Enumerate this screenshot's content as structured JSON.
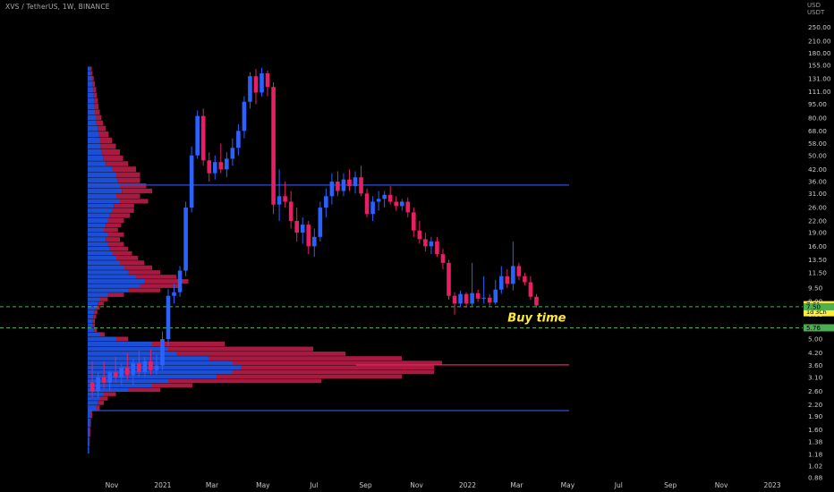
{
  "chart_data": {
    "type": "candlestick",
    "title": "XVS / TetherUS, 1W, BINANCE",
    "currency_unit": [
      "USD",
      "USDT"
    ],
    "colors": {
      "up": "#2962ff",
      "down": "#e91e63",
      "up_profile": "#1e56e8",
      "down_profile": "#b71c47",
      "level_line": "#2f4fd4",
      "dashed_line": "#4caf50",
      "annotation": "#ffeb3b",
      "axis_text": "#c8c8c8"
    },
    "scale": "log",
    "ylim": [
      0.86,
      300
    ],
    "y_ticks": [
      "250.00",
      "210.00",
      "180.00",
      "155.00",
      "131.00",
      "111.00",
      "95.00",
      "80.00",
      "68.00",
      "58.00",
      "50.00",
      "42.00",
      "36.00",
      "31.00",
      "26.00",
      "22.00",
      "19.00",
      "16.00",
      "13.50",
      "11.50",
      "9.50",
      "8.00",
      "6.80",
      "5.80",
      "5.00",
      "4.20",
      "3.60",
      "3.10",
      "2.60",
      "2.20",
      "1.90",
      "1.60",
      "1.38",
      "1.18",
      "1.02",
      "0.88"
    ],
    "x_ticks": [
      {
        "label": "Nov",
        "date": "2020-11-01"
      },
      {
        "label": "2021",
        "date": "2021-01-01"
      },
      {
        "label": "Mar",
        "date": "2021-03-01"
      },
      {
        "label": "May",
        "date": "2021-05-01"
      },
      {
        "label": "Jul",
        "date": "2021-07-01"
      },
      {
        "label": "Sep",
        "date": "2021-09-01"
      },
      {
        "label": "Nov",
        "date": "2021-11-01"
      },
      {
        "label": "2022",
        "date": "2022-01-01"
      },
      {
        "label": "Mar",
        "date": "2022-03-01"
      },
      {
        "label": "May",
        "date": "2022-05-01"
      },
      {
        "label": "Jul",
        "date": "2022-07-01"
      },
      {
        "label": "Sep",
        "date": "2022-09-01"
      },
      {
        "label": "Nov",
        "date": "2022-11-01"
      },
      {
        "label": "2023",
        "date": "2023-01-01"
      }
    ],
    "price_labels": [
      {
        "value": 7.61,
        "text": "7.61",
        "sub": "1d 3Ch",
        "color": "#ffeb3b"
      },
      {
        "value": 7.5,
        "text": "7.50",
        "color": "#4caf50"
      },
      {
        "value": 5.76,
        "text": "5.76",
        "color": "#4caf50"
      }
    ],
    "horizontal_levels": [
      {
        "value": 34.5,
        "kind": "solid"
      },
      {
        "value": 3.62,
        "kind": "solid-red"
      },
      {
        "value": 2.04,
        "kind": "solid"
      },
      {
        "value": 7.5,
        "kind": "dashed"
      },
      {
        "value": 5.76,
        "kind": "dashed"
      }
    ],
    "annotation": {
      "text": "Buy time",
      "date": "2022-03-25",
      "value": 6.5
    },
    "candles": [
      {
        "d": "2020-10-05",
        "o": 2.9,
        "h": 3.8,
        "l": 2.4,
        "c": 2.6
      },
      {
        "d": "2020-10-12",
        "o": 2.6,
        "h": 3.3,
        "l": 2.4,
        "c": 3.1
      },
      {
        "d": "2020-10-19",
        "o": 3.1,
        "h": 3.8,
        "l": 2.7,
        "c": 2.9
      },
      {
        "d": "2020-10-26",
        "o": 2.9,
        "h": 3.4,
        "l": 2.6,
        "c": 3.3
      },
      {
        "d": "2020-11-02",
        "o": 3.3,
        "h": 4.0,
        "l": 2.9,
        "c": 3.1
      },
      {
        "d": "2020-11-09",
        "o": 3.1,
        "h": 3.7,
        "l": 2.8,
        "c": 3.5
      },
      {
        "d": "2020-11-16",
        "o": 3.5,
        "h": 4.2,
        "l": 3.0,
        "c": 3.2
      },
      {
        "d": "2020-11-23",
        "o": 3.2,
        "h": 3.9,
        "l": 2.8,
        "c": 3.7
      },
      {
        "d": "2020-11-30",
        "o": 3.7,
        "h": 4.3,
        "l": 3.1,
        "c": 3.3
      },
      {
        "d": "2020-12-07",
        "o": 3.3,
        "h": 4.0,
        "l": 3.1,
        "c": 3.8
      },
      {
        "d": "2020-12-14",
        "o": 3.8,
        "h": 4.4,
        "l": 3.2,
        "c": 3.4
      },
      {
        "d": "2020-12-21",
        "o": 3.4,
        "h": 4.1,
        "l": 3.2,
        "c": 3.6
      },
      {
        "d": "2020-12-28",
        "o": 3.6,
        "h": 5.5,
        "l": 3.4,
        "c": 5.0
      },
      {
        "d": "2021-01-04",
        "o": 5.0,
        "h": 9.4,
        "l": 4.6,
        "c": 8.6
      },
      {
        "d": "2021-01-11",
        "o": 8.6,
        "h": 10.0,
        "l": 7.8,
        "c": 9.0
      },
      {
        "d": "2021-01-18",
        "o": 9.0,
        "h": 12.5,
        "l": 8.5,
        "c": 11.8
      },
      {
        "d": "2021-01-25",
        "o": 11.8,
        "h": 28.0,
        "l": 11.0,
        "c": 26.0
      },
      {
        "d": "2021-02-01",
        "o": 26.0,
        "h": 56.0,
        "l": 24.5,
        "c": 50.0
      },
      {
        "d": "2021-02-08",
        "o": 50.0,
        "h": 88.0,
        "l": 48.0,
        "c": 82.0
      },
      {
        "d": "2021-02-15",
        "o": 82.0,
        "h": 90.0,
        "l": 44.0,
        "c": 47.0
      },
      {
        "d": "2021-02-22",
        "o": 47.0,
        "h": 52.0,
        "l": 36.0,
        "c": 40.0
      },
      {
        "d": "2021-03-01",
        "o": 40.0,
        "h": 50.0,
        "l": 37.0,
        "c": 46.0
      },
      {
        "d": "2021-03-08",
        "o": 46.0,
        "h": 58.0,
        "l": 40.0,
        "c": 42.0
      },
      {
        "d": "2021-03-15",
        "o": 42.0,
        "h": 52.0,
        "l": 38.0,
        "c": 48.0
      },
      {
        "d": "2021-03-22",
        "o": 48.0,
        "h": 62.0,
        "l": 44.0,
        "c": 55.0
      },
      {
        "d": "2021-03-29",
        "o": 55.0,
        "h": 74.0,
        "l": 50.0,
        "c": 68.0
      },
      {
        "d": "2021-04-05",
        "o": 68.0,
        "h": 105.0,
        "l": 62.0,
        "c": 98.0
      },
      {
        "d": "2021-04-12",
        "o": 98.0,
        "h": 142.0,
        "l": 90.0,
        "c": 135.0
      },
      {
        "d": "2021-04-19",
        "o": 135.0,
        "h": 148.0,
        "l": 95.0,
        "c": 110.0
      },
      {
        "d": "2021-04-26",
        "o": 110.0,
        "h": 150.0,
        "l": 105.0,
        "c": 140.0
      },
      {
        "d": "2021-05-03",
        "o": 140.0,
        "h": 145.0,
        "l": 105.0,
        "c": 118.0
      },
      {
        "d": "2021-05-10",
        "o": 118.0,
        "h": 125.0,
        "l": 24.0,
        "c": 27.0
      },
      {
        "d": "2021-05-17",
        "o": 27.0,
        "h": 42.0,
        "l": 22.0,
        "c": 30.0
      },
      {
        "d": "2021-05-24",
        "o": 30.0,
        "h": 36.0,
        "l": 26.0,
        "c": 28.0
      },
      {
        "d": "2021-05-31",
        "o": 28.0,
        "h": 32.0,
        "l": 20.0,
        "c": 22.0
      },
      {
        "d": "2021-06-07",
        "o": 22.0,
        "h": 26.0,
        "l": 17.0,
        "c": 19.0
      },
      {
        "d": "2021-06-14",
        "o": 19.0,
        "h": 23.0,
        "l": 16.5,
        "c": 21.0
      },
      {
        "d": "2021-06-21",
        "o": 21.0,
        "h": 22.0,
        "l": 14.5,
        "c": 16.0
      },
      {
        "d": "2021-06-28",
        "o": 16.0,
        "h": 20.0,
        "l": 14.0,
        "c": 18.0
      },
      {
        "d": "2021-07-05",
        "o": 18.0,
        "h": 28.0,
        "l": 17.0,
        "c": 26.0
      },
      {
        "d": "2021-07-12",
        "o": 26.0,
        "h": 33.0,
        "l": 23.0,
        "c": 30.0
      },
      {
        "d": "2021-07-19",
        "o": 30.0,
        "h": 40.0,
        "l": 27.0,
        "c": 36.0
      },
      {
        "d": "2021-07-26",
        "o": 36.0,
        "h": 41.0,
        "l": 30.0,
        "c": 32.0
      },
      {
        "d": "2021-08-02",
        "o": 32.0,
        "h": 40.0,
        "l": 30.0,
        "c": 37.0
      },
      {
        "d": "2021-08-09",
        "o": 37.0,
        "h": 42.0,
        "l": 32.0,
        "c": 34.0
      },
      {
        "d": "2021-08-16",
        "o": 34.0,
        "h": 41.0,
        "l": 31.0,
        "c": 38.0
      },
      {
        "d": "2021-08-23",
        "o": 38.0,
        "h": 44.0,
        "l": 30.0,
        "c": 31.0
      },
      {
        "d": "2021-08-30",
        "o": 31.0,
        "h": 33.0,
        "l": 23.0,
        "c": 24.0
      },
      {
        "d": "2021-09-06",
        "o": 24.0,
        "h": 30.0,
        "l": 22.0,
        "c": 28.0
      },
      {
        "d": "2021-09-13",
        "o": 28.0,
        "h": 32.0,
        "l": 25.0,
        "c": 29.0
      },
      {
        "d": "2021-09-20",
        "o": 29.0,
        "h": 32.0,
        "l": 26.0,
        "c": 30.5
      },
      {
        "d": "2021-09-27",
        "o": 30.5,
        "h": 34.0,
        "l": 27.0,
        "c": 28.0
      },
      {
        "d": "2021-10-04",
        "o": 28.0,
        "h": 30.0,
        "l": 25.0,
        "c": 26.5
      },
      {
        "d": "2021-10-11",
        "o": 26.5,
        "h": 29.0,
        "l": 25.0,
        "c": 28.0
      },
      {
        "d": "2021-10-18",
        "o": 28.0,
        "h": 29.5,
        "l": 23.0,
        "c": 24.5
      },
      {
        "d": "2021-10-25",
        "o": 24.5,
        "h": 26.0,
        "l": 18.0,
        "c": 19.5
      },
      {
        "d": "2021-11-01",
        "o": 19.5,
        "h": 22.0,
        "l": 16.5,
        "c": 17.5
      },
      {
        "d": "2021-11-08",
        "o": 17.5,
        "h": 19.0,
        "l": 15.0,
        "c": 16.0
      },
      {
        "d": "2021-11-15",
        "o": 16.0,
        "h": 18.0,
        "l": 14.5,
        "c": 17.0
      },
      {
        "d": "2021-11-22",
        "o": 17.0,
        "h": 18.0,
        "l": 14.0,
        "c": 14.5
      },
      {
        "d": "2021-11-29",
        "o": 14.5,
        "h": 15.5,
        "l": 12.0,
        "c": 13.0
      },
      {
        "d": "2021-12-06",
        "o": 13.0,
        "h": 13.5,
        "l": 8.2,
        "c": 8.6
      },
      {
        "d": "2021-12-13",
        "o": 8.6,
        "h": 9.0,
        "l": 6.8,
        "c": 7.8
      },
      {
        "d": "2021-12-20",
        "o": 7.8,
        "h": 9.2,
        "l": 7.5,
        "c": 8.8
      },
      {
        "d": "2021-12-27",
        "o": 8.8,
        "h": 9.0,
        "l": 7.4,
        "c": 7.8
      },
      {
        "d": "2022-01-03",
        "o": 7.8,
        "h": 13.0,
        "l": 7.5,
        "c": 8.9
      },
      {
        "d": "2022-01-10",
        "o": 8.9,
        "h": 9.3,
        "l": 8.0,
        "c": 8.3
      },
      {
        "d": "2022-01-17",
        "o": 8.3,
        "h": 11.0,
        "l": 7.8,
        "c": 8.4
      },
      {
        "d": "2022-01-24",
        "o": 8.4,
        "h": 8.8,
        "l": 7.6,
        "c": 7.9
      },
      {
        "d": "2022-01-31",
        "o": 7.9,
        "h": 10.5,
        "l": 7.7,
        "c": 9.3
      },
      {
        "d": "2022-02-07",
        "o": 9.3,
        "h": 12.5,
        "l": 8.8,
        "c": 11.0
      },
      {
        "d": "2022-02-14",
        "o": 11.0,
        "h": 12.0,
        "l": 9.5,
        "c": 10.0
      },
      {
        "d": "2022-02-21",
        "o": 10.0,
        "h": 17.0,
        "l": 9.2,
        "c": 12.5
      },
      {
        "d": "2022-02-28",
        "o": 12.5,
        "h": 13.0,
        "l": 10.5,
        "c": 11.0
      },
      {
        "d": "2022-03-07",
        "o": 11.0,
        "h": 11.5,
        "l": 9.8,
        "c": 10.2
      },
      {
        "d": "2022-03-14",
        "o": 10.2,
        "h": 11.0,
        "l": 8.2,
        "c": 8.5
      },
      {
        "d": "2022-03-21",
        "o": 8.5,
        "h": 8.8,
        "l": 7.4,
        "c": 7.61
      }
    ],
    "profile": [
      {
        "p": 148,
        "up": 0.006,
        "dn": 0.004
      },
      {
        "p": 140,
        "up": 0.008,
        "dn": 0.004
      },
      {
        "p": 131,
        "up": 0.01,
        "dn": 0.005
      },
      {
        "p": 122,
        "up": 0.012,
        "dn": 0.006
      },
      {
        "p": 114,
        "up": 0.014,
        "dn": 0.007
      },
      {
        "p": 106,
        "up": 0.015,
        "dn": 0.008
      },
      {
        "p": 99,
        "up": 0.016,
        "dn": 0.009
      },
      {
        "p": 92,
        "up": 0.017,
        "dn": 0.01
      },
      {
        "p": 86,
        "up": 0.018,
        "dn": 0.012
      },
      {
        "p": 80,
        "up": 0.02,
        "dn": 0.014
      },
      {
        "p": 75,
        "up": 0.022,
        "dn": 0.016
      },
      {
        "p": 70,
        "up": 0.025,
        "dn": 0.02
      },
      {
        "p": 65,
        "up": 0.028,
        "dn": 0.024
      },
      {
        "p": 60,
        "up": 0.03,
        "dn": 0.03
      },
      {
        "p": 56,
        "up": 0.032,
        "dn": 0.038
      },
      {
        "p": 52,
        "up": 0.035,
        "dn": 0.045
      },
      {
        "p": 48,
        "up": 0.038,
        "dn": 0.05
      },
      {
        "p": 45,
        "up": 0.045,
        "dn": 0.055
      },
      {
        "p": 42,
        "up": 0.06,
        "dn": 0.06
      },
      {
        "p": 39,
        "up": 0.07,
        "dn": 0.06
      },
      {
        "p": 36.5,
        "up": 0.075,
        "dn": 0.055
      },
      {
        "p": 34,
        "up": 0.08,
        "dn": 0.065
      },
      {
        "p": 32,
        "up": 0.085,
        "dn": 0.075
      },
      {
        "p": 30,
        "up": 0.07,
        "dn": 0.06
      },
      {
        "p": 28,
        "up": 0.08,
        "dn": 0.07
      },
      {
        "p": 26.5,
        "up": 0.065,
        "dn": 0.05
      },
      {
        "p": 25,
        "up": 0.06,
        "dn": 0.055
      },
      {
        "p": 23.5,
        "up": 0.055,
        "dn": 0.05
      },
      {
        "p": 22,
        "up": 0.05,
        "dn": 0.04
      },
      {
        "p": 20.8,
        "up": 0.045,
        "dn": 0.038
      },
      {
        "p": 19.6,
        "up": 0.04,
        "dn": 0.035
      },
      {
        "p": 18.5,
        "up": 0.05,
        "dn": 0.04
      },
      {
        "p": 17.4,
        "up": 0.045,
        "dn": 0.035
      },
      {
        "p": 16.4,
        "up": 0.05,
        "dn": 0.04
      },
      {
        "p": 15.5,
        "up": 0.055,
        "dn": 0.045
      },
      {
        "p": 14.6,
        "up": 0.06,
        "dn": 0.05
      },
      {
        "p": 13.8,
        "up": 0.07,
        "dn": 0.055
      },
      {
        "p": 13.0,
        "up": 0.08,
        "dn": 0.06
      },
      {
        "p": 12.2,
        "up": 0.09,
        "dn": 0.07
      },
      {
        "p": 11.5,
        "up": 0.1,
        "dn": 0.08
      },
      {
        "p": 10.9,
        "up": 0.12,
        "dn": 0.1
      },
      {
        "p": 10.3,
        "up": 0.14,
        "dn": 0.11
      },
      {
        "p": 9.7,
        "up": 0.13,
        "dn": 0.1
      },
      {
        "p": 9.2,
        "up": 0.1,
        "dn": 0.08
      },
      {
        "p": 8.7,
        "up": 0.05,
        "dn": 0.04
      },
      {
        "p": 8.2,
        "up": 0.03,
        "dn": 0.02
      },
      {
        "p": 7.8,
        "up": 0.025,
        "dn": 0.015
      },
      {
        "p": 7.4,
        "up": 0.02,
        "dn": 0.01
      },
      {
        "p": 7.0,
        "up": 0.016,
        "dn": 0.008
      },
      {
        "p": 6.6,
        "up": 0.014,
        "dn": 0.007
      },
      {
        "p": 6.25,
        "up": 0.012,
        "dn": 0.006
      },
      {
        "p": 5.95,
        "up": 0.012,
        "dn": 0.006
      },
      {
        "p": 5.6,
        "up": 0.015,
        "dn": 0.008
      },
      {
        "p": 5.3,
        "up": 0.03,
        "dn": 0.012
      },
      {
        "p": 5.0,
        "up": 0.07,
        "dn": 0.03
      },
      {
        "p": 4.7,
        "up": 0.16,
        "dn": 0.18
      },
      {
        "p": 4.4,
        "up": 0.2,
        "dn": 0.36
      },
      {
        "p": 4.15,
        "up": 0.22,
        "dn": 0.42
      },
      {
        "p": 3.92,
        "up": 0.3,
        "dn": 0.48
      },
      {
        "p": 3.7,
        "up": 0.36,
        "dn": 0.52
      },
      {
        "p": 3.5,
        "up": 0.38,
        "dn": 0.48
      },
      {
        "p": 3.3,
        "up": 0.36,
        "dn": 0.5
      },
      {
        "p": 3.12,
        "up": 0.32,
        "dn": 0.46
      },
      {
        "p": 2.95,
        "up": 0.2,
        "dn": 0.38
      },
      {
        "p": 2.79,
        "up": 0.16,
        "dn": 0.1
      },
      {
        "p": 2.64,
        "up": 0.1,
        "dn": 0.08
      },
      {
        "p": 2.5,
        "up": 0.04,
        "dn": 0.03
      },
      {
        "p": 2.37,
        "up": 0.03,
        "dn": 0.02
      },
      {
        "p": 2.24,
        "up": 0.025,
        "dn": 0.015
      },
      {
        "p": 2.12,
        "up": 0.02,
        "dn": 0.01
      },
      {
        "p": 1.95,
        "up": 0.008,
        "dn": 0.003
      },
      {
        "p": 1.75,
        "up": 0.006,
        "dn": 0.002
      },
      {
        "p": 1.55,
        "up": 0.005,
        "dn": 0.002
      },
      {
        "p": 1.38,
        "up": 0.004,
        "dn": 0.001
      },
      {
        "p": 1.22,
        "up": 0.003,
        "dn": 0.001
      }
    ]
  }
}
